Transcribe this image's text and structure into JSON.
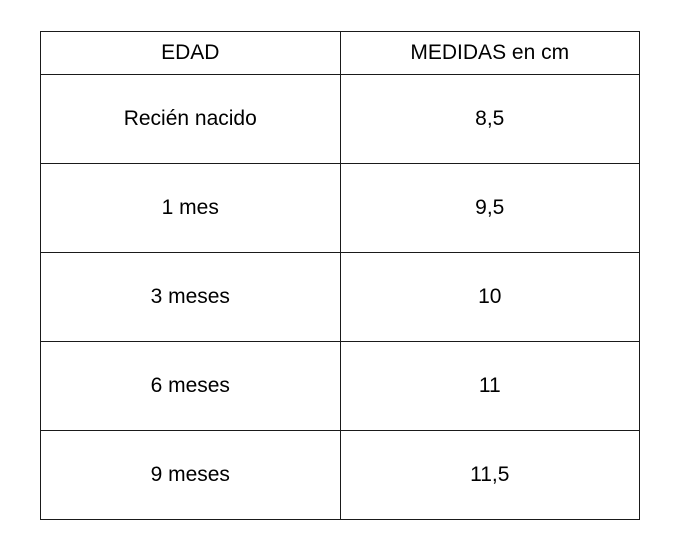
{
  "table": {
    "headers": [
      "EDAD",
      "MEDIDAS en cm"
    ],
    "rows": [
      {
        "edad": "Recién nacido",
        "medida": "8,5"
      },
      {
        "edad": "1 mes",
        "medida": "9,5"
      },
      {
        "edad": "3 meses",
        "medida": "10"
      },
      {
        "edad": "6 meses",
        "medida": "11"
      },
      {
        "edad": "9 meses",
        "medida": "11,5"
      }
    ]
  }
}
